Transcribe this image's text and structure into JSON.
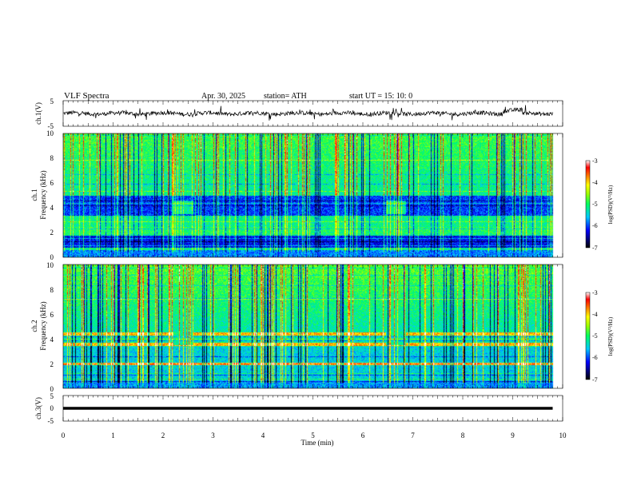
{
  "header": {
    "title": "VLF  Spectra",
    "date": "Apr. 30, 2025",
    "station": "station= ATH",
    "start": "start  UT  =   15: 10: 0"
  },
  "chart_data": [
    {
      "name": "ch1-waveform",
      "type": "line",
      "ylabel": "ch.1(V)",
      "ylim": [
        -5,
        5
      ],
      "yticks": [
        "5",
        "-5"
      ],
      "xlim": [
        0,
        10
      ],
      "data_end_min": 9.8
    },
    {
      "name": "ch1-spectrogram",
      "type": "heatmap",
      "ylabel": "ch.1\nFrequency  (kHz)",
      "ylabel_line1": "ch.1",
      "ylabel_line2": "Frequency  (kHz)",
      "ylim": [
        0,
        10
      ],
      "yticks": [
        "0",
        "2",
        "4",
        "6",
        "8",
        "10"
      ],
      "xlim": [
        0,
        10
      ],
      "colorbar": {
        "label": "log(PSD)(V²/Hz)",
        "range": [
          -7,
          -3
        ],
        "ticks": [
          "-3",
          "-4",
          "-5",
          "-6",
          "-7"
        ]
      },
      "strong_band_khz": [
        0.8,
        1.8
      ],
      "weak_band_khz": [
        3.4,
        5.0
      ],
      "bursts_min": [
        2.2,
        6.45
      ]
    },
    {
      "name": "ch2-spectrogram",
      "type": "heatmap",
      "ylabel_line1": "ch.2",
      "ylabel_line2": "Frequency  (kHz)",
      "ylim": [
        0,
        10
      ],
      "yticks": [
        "0",
        "2",
        "4",
        "6",
        "8",
        "10"
      ],
      "xlim": [
        0,
        10
      ],
      "colorbar": {
        "label": "log(PSD)(V²/Hz)",
        "range": [
          -7,
          -3
        ],
        "ticks": [
          "-3",
          "-4",
          "-5",
          "-6",
          "-7"
        ]
      },
      "line_khz": [
        2.0,
        3.6,
        4.4
      ],
      "bursts_min": [
        2.2,
        6.45
      ]
    },
    {
      "name": "ch3-waveform",
      "type": "line",
      "ylabel": "ch.3(V)",
      "ylim": [
        -5,
        5
      ],
      "yticks": [
        "5",
        "0",
        "-5"
      ],
      "xlim": [
        0,
        10
      ],
      "level_v": 0,
      "data_end_min": 9.8
    }
  ],
  "xaxis": {
    "label": "Time  (min)",
    "ticks": [
      "0",
      "1",
      "2",
      "3",
      "4",
      "5",
      "6",
      "7",
      "8",
      "9",
      "10"
    ]
  }
}
